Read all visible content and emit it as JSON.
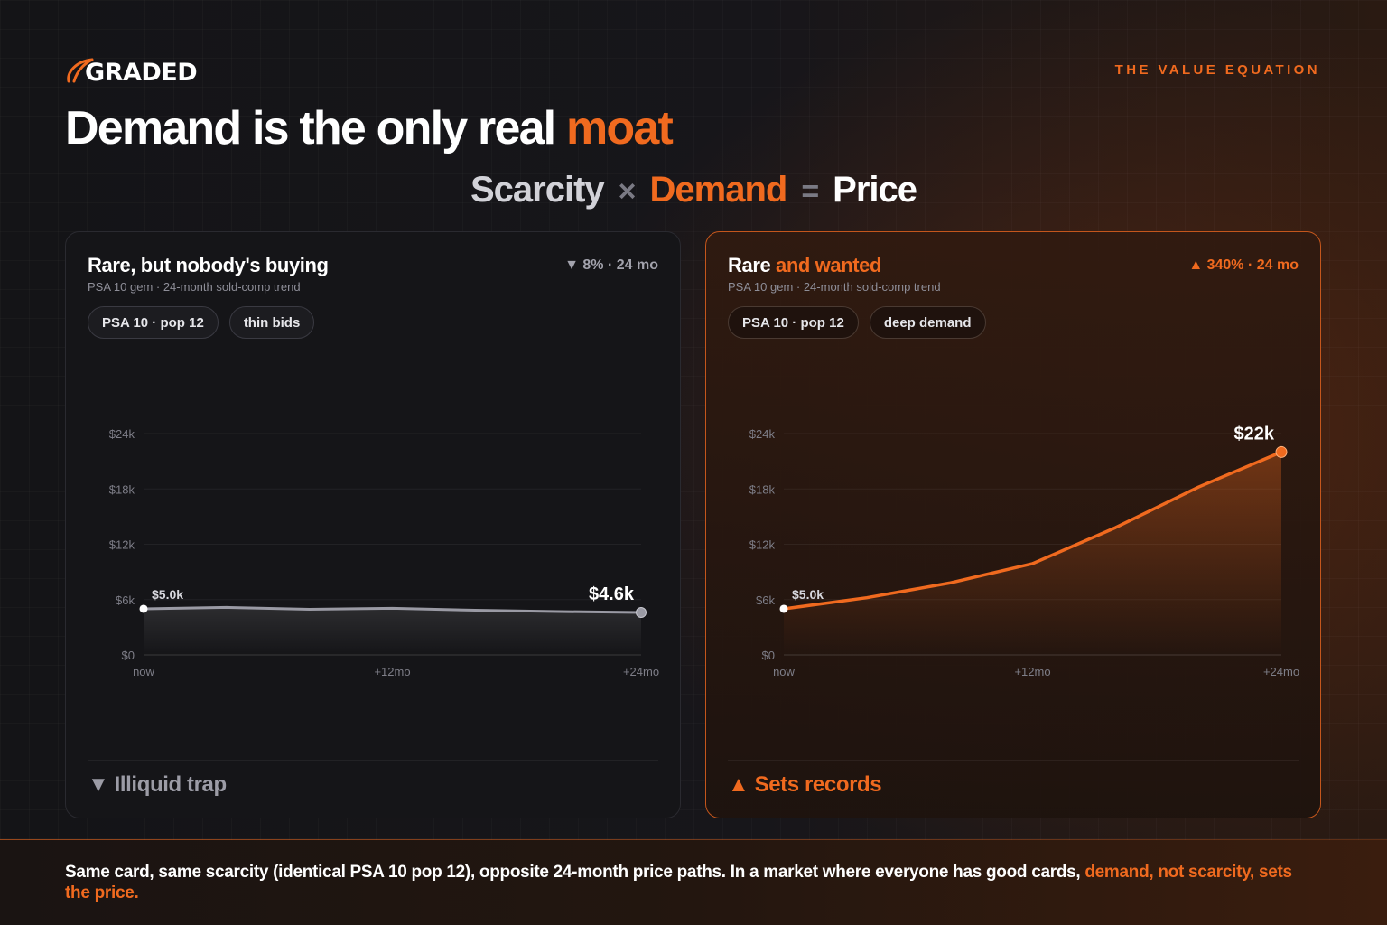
{
  "brand": {
    "logo_text": "GRADED",
    "logo_icon": "orbit-swoosh-icon"
  },
  "kicker": "THE VALUE EQUATION",
  "headline": {
    "main": "Demand is the only real ",
    "accent": "moat"
  },
  "equation": {
    "scarcity": "Scarcity",
    "times": "×",
    "demand": "Demand",
    "equals": "=",
    "price": "Price"
  },
  "colors": {
    "accent": "#f06a1f",
    "flat_line": "#9a9aa4",
    "background": "#141417"
  },
  "cards": [
    {
      "title": "Rare, but nobody's buying",
      "title_accent": "",
      "subtitle": "PSA 10 gem · 24-month sold-comp trend",
      "delta": "▼ 8% · 24 mo",
      "pills": [
        "PSA 10 · pop 12",
        "thin bids"
      ],
      "verdict": "▼ Illiquid trap"
    },
    {
      "title": "Rare ",
      "title_accent": "and wanted",
      "subtitle": "PSA 10 gem · 24-month sold-comp trend",
      "delta": "▲ 340% · 24 mo",
      "pills": [
        "PSA 10 · pop 12",
        "deep demand"
      ],
      "verdict": "▲ Sets records"
    }
  ],
  "chart_data": [
    {
      "type": "area",
      "x_ticks": [
        "now",
        "+12mo",
        "+24mo"
      ],
      "y_ticks": [
        "$0",
        "$6k",
        "$12k",
        "$18k",
        "$24k"
      ],
      "ylim": [
        0,
        24000
      ],
      "xlim": [
        0,
        24
      ],
      "grid": true,
      "x": [
        0,
        4,
        8,
        12,
        16,
        20,
        24
      ],
      "values": [
        5000,
        5150,
        4950,
        5050,
        4850,
        4700,
        4600
      ],
      "start_label": "$5.0k",
      "end_label": "$4.6k"
    },
    {
      "type": "area",
      "x_ticks": [
        "now",
        "+12mo",
        "+24mo"
      ],
      "y_ticks": [
        "$0",
        "$6k",
        "$12k",
        "$18k",
        "$24k"
      ],
      "ylim": [
        0,
        24000
      ],
      "xlim": [
        0,
        24
      ],
      "grid": true,
      "x": [
        0,
        4,
        8,
        12,
        16,
        20,
        24
      ],
      "values": [
        5000,
        6200,
        7800,
        9900,
        13800,
        18200,
        22000
      ],
      "start_label": "$5.0k",
      "end_label": "$22k"
    }
  ],
  "footer": {
    "text": "Same card, same scarcity (identical PSA 10 pop 12), opposite 24-month price paths. In a market where everyone has good cards, ",
    "accent": "demand, not scarcity, sets the price."
  }
}
